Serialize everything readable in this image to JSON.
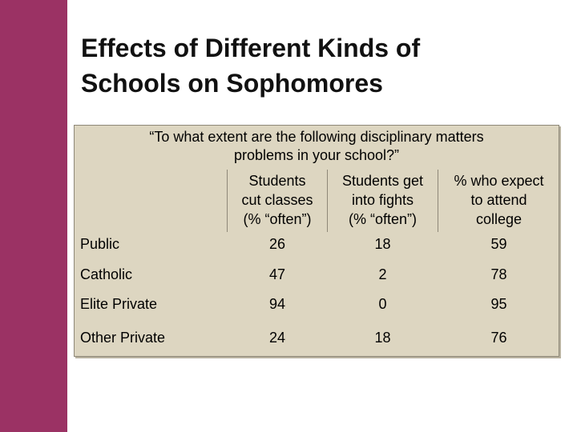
{
  "slide": {
    "title_line1": "Effects of Different Kinds of",
    "title_line2": "Schools on Sophomores"
  },
  "table": {
    "question_line1": "“To what extent are the following disciplinary matters",
    "question_line2": "problems in your school?”",
    "columns": [
      {
        "line1": "Students",
        "line2": "cut classes",
        "line3": "(% “often”)"
      },
      {
        "line1": "Students get",
        "line2": "into fights",
        "line3": "(% “often”)"
      },
      {
        "line1": "%  who expect",
        "line2": "to attend",
        "line3": "college"
      }
    ],
    "rows": [
      {
        "label": "Public",
        "values": [
          "26",
          "18",
          "59"
        ]
      },
      {
        "label": "Catholic",
        "values": [
          "47",
          "2",
          "78"
        ]
      },
      {
        "label": "Elite Private",
        "values": [
          "94",
          "0",
          "95"
        ]
      },
      {
        "label": "Other Private",
        "values": [
          "24",
          "18",
          "76"
        ]
      }
    ]
  }
}
